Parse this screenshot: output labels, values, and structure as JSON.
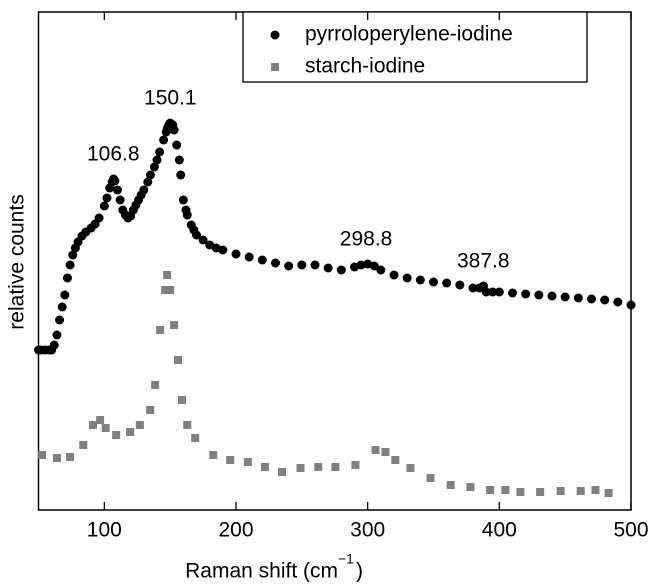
{
  "chart_data": {
    "type": "scatter",
    "xlabel": "Raman shift (cm",
    "xlabel_superscript": "−1",
    "xlabel_end": ")",
    "ylabel": "relative counts",
    "xlim": [
      50,
      500
    ],
    "xticks": [
      100,
      200,
      300,
      400,
      500
    ],
    "ylim": [
      0,
      498
    ],
    "legend": "top",
    "peak_labels": [
      106.8,
      150.1,
      298.8,
      387.8
    ],
    "series": [
      {
        "name": "pyrroloperylene-iodine",
        "color": "#000000",
        "marker": "circle",
        "x": [
          50,
          52,
          55,
          58,
          60,
          62,
          64,
          66,
          68,
          70,
          72,
          74,
          76,
          78,
          80,
          83,
          86,
          90,
          93,
          96,
          100,
          102,
          104,
          106,
          107,
          108,
          110,
          112,
          114,
          116,
          118,
          120,
          122,
          124,
          126,
          128,
          130,
          133,
          135,
          138,
          140,
          142,
          145,
          147,
          148,
          149,
          150,
          151,
          152,
          153,
          155,
          157,
          158,
          160,
          162,
          163,
          166,
          168,
          170,
          175,
          180,
          185,
          190,
          200,
          210,
          220,
          230,
          240,
          250,
          260,
          270,
          280,
          290,
          295,
          300,
          305,
          310,
          320,
          330,
          340,
          350,
          360,
          370,
          380,
          385,
          388,
          390,
          395,
          400,
          410,
          420,
          430,
          440,
          450,
          460,
          470,
          480,
          490,
          500
        ],
        "values": [
          160,
          160,
          160,
          160,
          160,
          165,
          175,
          190,
          203,
          215,
          232,
          245,
          255,
          262,
          268,
          274,
          278,
          282,
          286,
          292,
          304,
          312,
          322,
          328,
          331,
          329,
          320,
          310,
          300,
          295,
          292,
          294,
          300,
          305,
          310,
          315,
          320,
          328,
          335,
          343,
          350,
          358,
          370,
          378,
          382,
          385,
          387,
          386,
          385,
          380,
          365,
          350,
          335,
          310,
          300,
          295,
          285,
          280,
          275,
          270,
          265,
          262,
          260,
          256,
          253,
          250,
          247,
          244,
          245,
          245,
          242,
          240,
          243,
          245,
          246,
          244,
          240,
          235,
          232,
          230,
          228,
          227,
          225,
          222,
          222,
          224,
          218,
          218,
          218,
          217,
          216,
          215,
          214,
          213,
          212,
          211,
          210,
          208,
          205
        ]
      },
      {
        "name": "starch-iodine",
        "color": "#808080",
        "marker": "square",
        "x": [
          52.7,
          64,
          74,
          84,
          91.4,
          96.8,
          101,
          109,
          119.6,
          127,
          134.8,
          138.6,
          142.4,
          146.2,
          147.7,
          150,
          153,
          156,
          159,
          163,
          169,
          182.7,
          195.6,
          209,
          222,
          235,
          249,
          262.5,
          275.5,
          290.7,
          306,
          313.5,
          321,
          332.5,
          347.7,
          363,
          378,
          393,
          404.6,
          416,
          431,
          446.6,
          461.8,
          473,
          483
        ],
        "values": [
          55,
          52,
          53,
          65,
          85,
          90,
          82,
          75,
          78,
          85,
          100,
          125,
          180,
          220,
          235,
          220,
          185,
          150,
          110,
          85,
          72,
          55,
          50,
          48,
          43,
          38,
          42,
          43,
          43,
          45,
          60,
          58,
          50,
          42,
          32,
          25,
          23,
          20,
          20,
          18,
          18,
          19,
          19,
          20,
          17
        ]
      }
    ]
  }
}
